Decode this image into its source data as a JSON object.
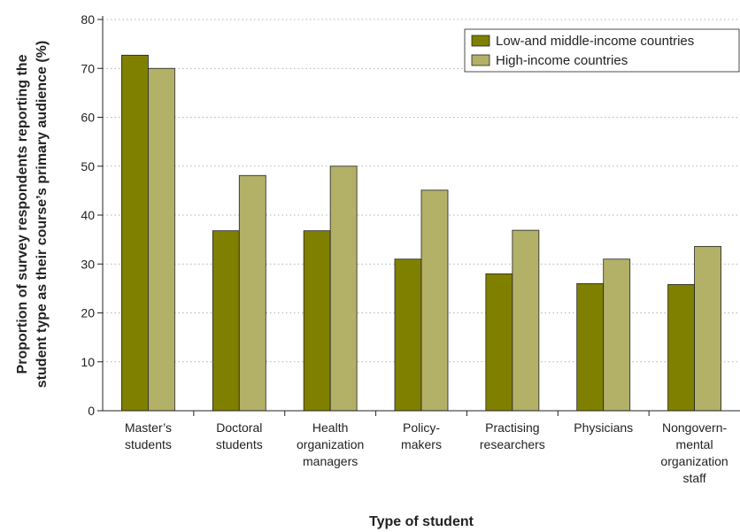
{
  "chart_data": {
    "type": "bar",
    "xlabel": "Type of student",
    "ylabel_lines": [
      "Proportion of survey respondents reporting the",
      "student type as their course’s primary audience (%)"
    ],
    "ylim": [
      0,
      80
    ],
    "yticks": [
      0,
      10,
      20,
      30,
      40,
      50,
      60,
      70,
      80
    ],
    "grid": "horizontal-dotted",
    "legend_position": "top-right",
    "categories": [
      [
        "Master’s",
        "students"
      ],
      [
        "Doctoral",
        "students"
      ],
      [
        "Health",
        "organization",
        "managers"
      ],
      [
        "Policy-",
        "makers"
      ],
      [
        "Practising",
        "researchers"
      ],
      [
        "Physicians"
      ],
      [
        "Nongovern-",
        "mental",
        "organization",
        "staff"
      ]
    ],
    "series": [
      {
        "name": "Low-and middle-income countries",
        "color": "#808000",
        "values": [
          72.7,
          36.8,
          36.8,
          31.0,
          28.0,
          26.0,
          25.8
        ]
      },
      {
        "name": "High-income countries",
        "color": "#b3b068",
        "values": [
          70.0,
          48.1,
          50.0,
          45.1,
          36.9,
          31.0,
          33.6
        ]
      }
    ]
  }
}
